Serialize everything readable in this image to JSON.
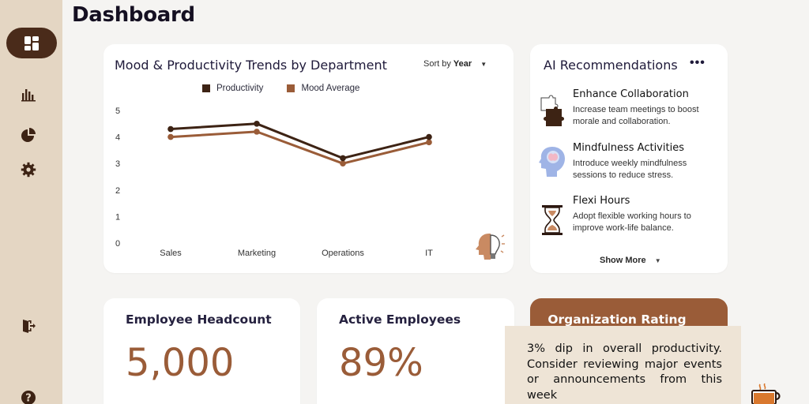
{
  "page": {
    "title": "Dashboard"
  },
  "sidebar": {
    "items": [
      {
        "name": "dashboard",
        "icon": "dashboard-grid-icon",
        "active": true
      },
      {
        "name": "analytics",
        "icon": "bar-chart-icon"
      },
      {
        "name": "reports",
        "icon": "pie-chart-icon"
      },
      {
        "name": "settings",
        "icon": "gear-icon"
      },
      {
        "name": "logout",
        "icon": "logout-door-icon"
      },
      {
        "name": "help",
        "icon": "help-icon"
      }
    ]
  },
  "trends": {
    "title": "Mood & Productivity Trends by Department",
    "sort_prefix": "Sort by",
    "sort_value": "Year",
    "sort_caret": "▼",
    "decor_icon": "head-lightbulb-icon"
  },
  "chart_data": {
    "type": "line",
    "categories": [
      "Sales",
      "Marketing",
      "Operations",
      "IT"
    ],
    "series": [
      {
        "name": "Productivity",
        "color": "#3d2314",
        "values": [
          4.3,
          4.5,
          3.2,
          4.0
        ]
      },
      {
        "name": "Mood Average",
        "color": "#9a5c38",
        "values": [
          4.0,
          4.2,
          3.0,
          3.8
        ]
      }
    ],
    "ylim": [
      0,
      5
    ],
    "yticks": [
      0,
      1,
      2,
      3,
      4,
      5
    ],
    "legend": "top-center",
    "grid": false
  },
  "ai": {
    "title": "AI Recommendations",
    "more": "•••",
    "show_more": "Show More",
    "show_more_caret": "▼",
    "items": [
      {
        "title": "Enhance  Collaboration",
        "desc": "Increase team meetings to boost morale and collaboration.",
        "icon": "puzzle-icon"
      },
      {
        "title": "Mindfulness Activities",
        "desc": "Introduce weekly mindfulness sessions to reduce stress.",
        "icon": "brain-head-icon"
      },
      {
        "title": "Flexi Hours",
        "desc": "Adopt flexible working hours to improve work-life balance.",
        "icon": "hourglass-icon"
      }
    ]
  },
  "stats": {
    "headcount": {
      "title": "Employee Headcount",
      "value": "5,000"
    },
    "active": {
      "title": "Active Employees",
      "value": "89%"
    },
    "org": {
      "title": "Organization Rating"
    }
  },
  "toast": {
    "message": "3% dip in overall productivity. Consider reviewing major events or announcements from this week",
    "icon": "siren-alert-icon"
  },
  "corner": {
    "icon": "coffee-cup-icon"
  },
  "colors": {
    "brand_dark": "#4a2b1a",
    "brand": "#9a5c38",
    "sidebar_bg": "#e4d6c3",
    "toast_bg": "#eee4d6"
  }
}
